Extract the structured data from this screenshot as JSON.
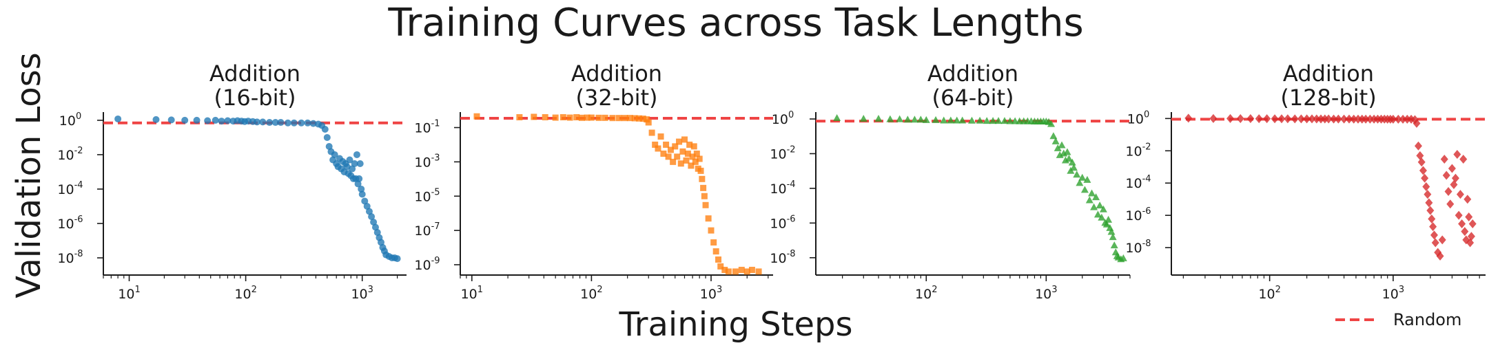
{
  "figure": {
    "title": "Training Curves across Task Lengths",
    "xlabel": "Training Steps",
    "ylabel": "Validation Loss",
    "legend": {
      "entries": [
        {
          "label": "Random",
          "color": "#ef4444",
          "style": "dashed"
        }
      ],
      "placement": "bottom-right"
    }
  },
  "chart_data": [
    {
      "type": "scatter",
      "title": "Addition\n(16-bit)",
      "x_scale": "log",
      "y_scale": "log",
      "xlim": [
        6,
        2400
      ],
      "ylim": [
        1e-09,
        3.0
      ],
      "x_ticks": [
        {
          "v": 10,
          "e": "1"
        },
        {
          "v": 100,
          "e": "2"
        },
        {
          "v": 1000,
          "e": "3"
        }
      ],
      "y_ticks": [
        {
          "v": 1,
          "e": "0"
        },
        {
          "v": 0.01,
          "e": "-2"
        },
        {
          "v": 0.0001,
          "e": "-4"
        },
        {
          "v": 1e-06,
          "e": "-6"
        },
        {
          "v": 1e-08,
          "e": "-8"
        }
      ],
      "random_baseline": 0.7,
      "series": [
        {
          "color": "#1f77b4",
          "marker": "circle",
          "x": [
            8,
            17,
            23,
            30,
            38,
            47,
            55,
            62,
            70,
            78,
            85,
            92,
            98,
            105,
            115,
            125,
            140,
            160,
            180,
            200,
            230,
            260,
            300,
            340,
            380,
            420,
            450,
            480,
            500,
            520,
            540,
            560,
            580,
            600,
            620,
            640,
            660,
            680,
            700,
            720,
            740,
            760,
            780,
            800,
            820,
            840,
            860,
            880,
            900,
            920,
            940,
            960,
            980,
            1000,
            1050,
            1100,
            1150,
            1200,
            1250,
            1300,
            1350,
            1400,
            1450,
            1500,
            1550,
            1600,
            1700,
            1800,
            1900,
            2000
          ],
          "y": [
            1.2,
            1.1,
            1.05,
            1.0,
            1.0,
            0.95,
            1.0,
            0.9,
            0.95,
            0.9,
            0.95,
            0.9,
            0.85,
            0.9,
            0.85,
            0.8,
            0.8,
            0.75,
            0.75,
            0.75,
            0.7,
            0.7,
            0.7,
            0.7,
            0.65,
            0.6,
            0.5,
            0.3,
            0.1,
            0.03,
            0.015,
            0.005,
            0.01,
            0.003,
            0.002,
            0.006,
            0.0015,
            0.004,
            0.001,
            0.003,
            0.002,
            0.0008,
            0.005,
            0.0006,
            0.0015,
            0.0004,
            0.003,
            0.0004,
            0.01,
            0.0002,
            0.0004,
            0.003,
            0.0001,
            5e-05,
            2e-05,
            1e-05,
            5e-06,
            2.5e-06,
            1.2e-06,
            6e-07,
            3e-07,
            1.5e-07,
            8e-08,
            4e-08,
            2.5e-08,
            1.5e-08,
            1.2e-08,
            1e-08,
            1e-08,
            9e-09
          ]
        }
      ]
    },
    {
      "type": "scatter",
      "title": "Addition\n(32-bit)",
      "x_scale": "log",
      "y_scale": "log",
      "xlim": [
        8,
        3300
      ],
      "ylim": [
        2.5e-10,
        0.8
      ],
      "x_ticks": [
        {
          "v": 10,
          "e": "1"
        },
        {
          "v": 100,
          "e": "2"
        },
        {
          "v": 1000,
          "e": "3"
        }
      ],
      "y_ticks": [
        {
          "v": 0.1,
          "e": "-1"
        },
        {
          "v": 0.001,
          "e": "-3"
        },
        {
          "v": 1e-05,
          "e": "-5"
        },
        {
          "v": 1e-07,
          "e": "-7"
        },
        {
          "v": 1e-09,
          "e": "-9"
        }
      ],
      "random_baseline": 0.35,
      "series": [
        {
          "color": "#ff7f0e",
          "marker": "square",
          "x": [
            11,
            25,
            33,
            41,
            50,
            58,
            66,
            75,
            83,
            92,
            100,
            115,
            130,
            150,
            170,
            190,
            210,
            230,
            250,
            270,
            290,
            300,
            320,
            340,
            360,
            380,
            400,
            420,
            440,
            460,
            480,
            500,
            520,
            540,
            560,
            580,
            600,
            620,
            640,
            660,
            680,
            700,
            720,
            740,
            760,
            780,
            800,
            820,
            840,
            860,
            880,
            900,
            950,
            1000,
            1050,
            1100,
            1150,
            1200,
            1300,
            1400,
            1600,
            1800,
            2000,
            2200,
            2500
          ],
          "y": [
            0.45,
            0.4,
            0.42,
            0.4,
            0.38,
            0.4,
            0.38,
            0.4,
            0.37,
            0.38,
            0.38,
            0.37,
            0.37,
            0.36,
            0.36,
            0.36,
            0.36,
            0.35,
            0.34,
            0.33,
            0.3,
            0.2,
            0.05,
            0.01,
            0.006,
            0.03,
            0.003,
            0.01,
            0.002,
            0.005,
            0.001,
            0.008,
            0.002,
            0.015,
            0.0008,
            0.004,
            0.02,
            0.0012,
            0.003,
            0.01,
            0.0006,
            0.002,
            0.008,
            0.001,
            0.003,
            0.0004,
            0.0015,
            0.0003,
            0.0001,
            3e-05,
            1e-05,
            3e-06,
            5e-07,
            1e-07,
            2e-08,
            6e-09,
            2e-09,
            8e-10,
            5e-10,
            4e-10,
            4e-10,
            5e-10,
            4e-10,
            5e-10,
            4e-10
          ]
        }
      ]
    },
    {
      "type": "scatter",
      "title": "Addition\n(64-bit)",
      "x_scale": "log",
      "y_scale": "log",
      "xlim": [
        12,
        5000
      ],
      "ylim": [
        1e-09,
        2.5
      ],
      "x_ticks": [
        {
          "v": 100,
          "e": "2"
        },
        {
          "v": 1000,
          "e": "3"
        }
      ],
      "y_ticks": [
        {
          "v": 1,
          "e": "0"
        },
        {
          "v": 0.01,
          "e": "-2"
        },
        {
          "v": 0.0001,
          "e": "-4"
        },
        {
          "v": 1e-06,
          "e": "-6"
        },
        {
          "v": 1e-08,
          "e": "-8"
        }
      ],
      "random_baseline": 0.75,
      "series": [
        {
          "color": "#2ca02c",
          "marker": "triangle",
          "x": [
            18,
            30,
            40,
            50,
            60,
            70,
            80,
            90,
            100,
            120,
            140,
            160,
            180,
            200,
            240,
            280,
            320,
            360,
            400,
            450,
            500,
            550,
            600,
            650,
            700,
            750,
            800,
            850,
            900,
            950,
            1000,
            1050,
            1100,
            1150,
            1200,
            1250,
            1300,
            1350,
            1400,
            1450,
            1500,
            1550,
            1600,
            1650,
            1700,
            1800,
            1900,
            2000,
            2100,
            2200,
            2300,
            2400,
            2500,
            2600,
            2700,
            2800,
            2900,
            3000,
            3100,
            3200,
            3300,
            3400,
            3500,
            3600,
            3700,
            3800,
            3900,
            4000,
            4200,
            4400
          ],
          "y": [
            1.1,
            1.0,
            1.0,
            0.95,
            0.95,
            0.9,
            0.9,
            0.9,
            0.85,
            0.85,
            0.8,
            0.8,
            0.8,
            0.8,
            0.78,
            0.78,
            0.75,
            0.75,
            0.75,
            0.75,
            0.73,
            0.73,
            0.72,
            0.72,
            0.72,
            0.72,
            0.7,
            0.7,
            0.7,
            0.7,
            0.7,
            0.65,
            0.5,
            0.1,
            0.05,
            0.02,
            0.008,
            0.03,
            0.01,
            0.004,
            0.012,
            0.005,
            0.001,
            0.003,
            0.0015,
            0.0006,
            0.0002,
            0.0004,
            8e-05,
            0.0003,
            2e-05,
            5e-05,
            8e-06,
            3e-05,
            3e-06,
            1e-05,
            2e-06,
            6e-06,
            1e-06,
            8e-07,
            1.5e-06,
            5e-07,
            3e-07,
            1.5e-07,
            5e-08,
            2e-08,
            1.2e-08,
            1e-08,
            8e-09,
            9e-09
          ]
        }
      ]
    },
    {
      "type": "scatter",
      "title": "Addition\n(128-bit)",
      "x_scale": "log",
      "y_scale": "log",
      "xlim": [
        16,
        5600
      ],
      "ylim": [
        2e-10,
        2.5
      ],
      "x_ticks": [
        {
          "v": 100,
          "e": "2"
        },
        {
          "v": 1000,
          "e": "3"
        }
      ],
      "y_ticks": [
        {
          "v": 1,
          "e": "0"
        },
        {
          "v": 0.01,
          "e": "-2"
        },
        {
          "v": 0.0001,
          "e": "-4"
        },
        {
          "v": 1e-06,
          "e": "-6"
        },
        {
          "v": 1e-08,
          "e": "-8"
        }
      ],
      "random_baseline": 0.9,
      "series": [
        {
          "color": "#d62728",
          "marker": "diamond",
          "x": [
            22,
            35,
            48,
            58,
            70,
            82,
            95,
            110,
            125,
            140,
            160,
            180,
            200,
            220,
            240,
            260,
            280,
            300,
            330,
            360,
            400,
            440,
            480,
            520,
            560,
            600,
            650,
            700,
            750,
            800,
            850,
            900,
            950,
            1000,
            1100,
            1200,
            1300,
            1400,
            1500,
            1550,
            1600,
            1650,
            1700,
            1750,
            1800,
            1850,
            1900,
            1950,
            2000,
            2050,
            2100,
            2150,
            2200,
            2300,
            2400,
            2500,
            2600,
            2700,
            2800,
            2900,
            3000,
            3100,
            3200,
            3300,
            3400,
            3500,
            3600,
            3700,
            3800,
            3900,
            4000,
            4100,
            4200,
            4300,
            4400
          ],
          "y": [
            1.05,
            1.0,
            1.0,
            0.98,
            0.98,
            0.97,
            0.97,
            0.96,
            0.96,
            0.96,
            0.95,
            0.95,
            0.95,
            0.95,
            0.94,
            0.94,
            0.94,
            0.94,
            0.93,
            0.93,
            0.93,
            0.93,
            0.92,
            0.92,
            0.92,
            0.92,
            0.92,
            0.91,
            0.91,
            0.91,
            0.91,
            0.9,
            0.9,
            0.9,
            0.9,
            0.9,
            0.9,
            0.9,
            0.85,
            0.5,
            0.02,
            0.005,
            0.002,
            0.0006,
            0.0002,
            6e-05,
            2e-05,
            6e-06,
            2e-06,
            6e-07,
            2e-07,
            6e-08,
            2e-08,
            5e-09,
            3e-09,
            3e-08,
            0.003,
            0.0003,
            3e-05,
            5e-06,
            0.0008,
            8e-05,
            0.0002,
            0.006,
            1e-06,
            2e-05,
            3e-07,
            0.003,
            1e-07,
            3e-08,
            1e-05,
            8e-07,
            2e-08,
            5e-08,
            3e-07
          ]
        }
      ]
    }
  ]
}
